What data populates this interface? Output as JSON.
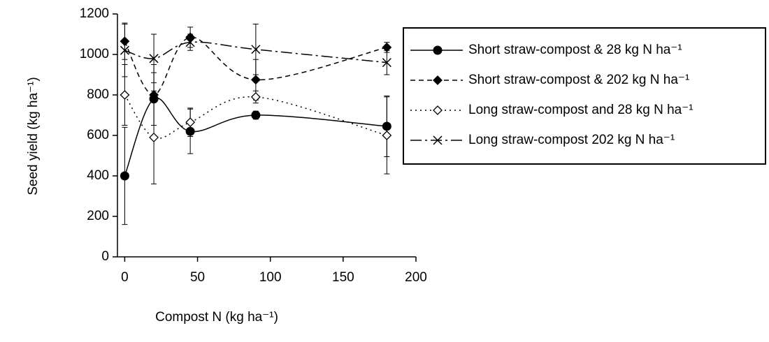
{
  "chart_data": {
    "type": "line",
    "x_label": "Compost N (kg ha⁻¹)",
    "y_label": "Seed yield (kg ha⁻¹)",
    "x": [
      0,
      20,
      45,
      90,
      180
    ],
    "xlim": [
      -5,
      200
    ],
    "xticks": [
      0,
      50,
      100,
      150,
      200
    ],
    "ylim": [
      0,
      1200
    ],
    "yticks": [
      0,
      200,
      400,
      600,
      800,
      1000,
      1200
    ],
    "smooth": true,
    "legend": "upper right",
    "series": [
      {
        "name": "Short straw-compost & 28 kg N ha⁻¹",
        "color": "#000000",
        "marker": "circle-filled",
        "dash": "solid",
        "values": [
          400,
          780,
          620,
          700,
          645
        ],
        "errors": [
          240,
          130,
          110,
          20,
          150
        ]
      },
      {
        "name": "Short straw-compost & 202 kg N ha⁻¹",
        "color": "#000000",
        "marker": "diamond-filled",
        "dash": "dashed",
        "values": [
          1065,
          800,
          1085,
          875,
          1035
        ],
        "errors": [
          90,
          150,
          50,
          100,
          25
        ]
      },
      {
        "name": "Long straw-compost and 28 kg N ha⁻¹",
        "color": "#000000",
        "marker": "diamond-open",
        "dash": "dotted",
        "values": [
          800,
          590,
          665,
          790,
          600
        ],
        "errors": [
          150,
          230,
          70,
          30,
          190
        ]
      },
      {
        "name": "Long straw-compost 202 kg N ha⁻¹",
        "color": "#000000",
        "marker": "x",
        "dash": "dashdot",
        "values": [
          1020,
          980,
          1060,
          1025,
          960
        ],
        "errors": [
          130,
          120,
          40,
          125,
          60
        ]
      }
    ]
  }
}
